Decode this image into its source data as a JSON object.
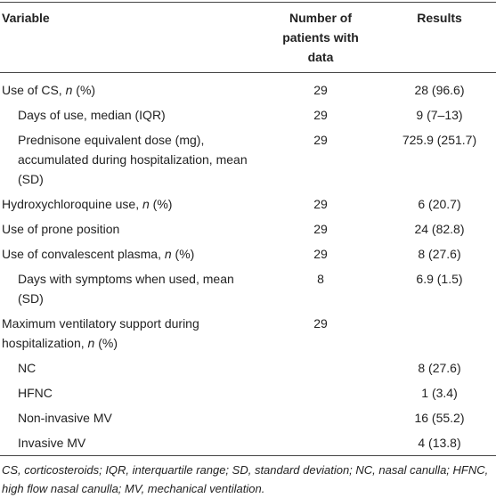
{
  "table": {
    "columns": [
      "Variable",
      "Number of patients with data",
      "Results"
    ],
    "rows": [
      {
        "variable": "Use of CS, n (%)",
        "patients": 29,
        "result": "28 (96.6)",
        "indent": false
      },
      {
        "variable": "Days of use, median (IQR)",
        "patients": 29,
        "result": "9 (7–13)",
        "indent": true
      },
      {
        "variable": "Prednisone equivalent dose (mg), accumulated during hospitalization, mean (SD)",
        "patients": 29,
        "result": "725.9 (251.7)",
        "indent": true
      },
      {
        "variable": "Hydroxychloroquine use, n (%)",
        "patients": 29,
        "result": "6 (20.7)",
        "indent": false
      },
      {
        "variable": "Use of prone position",
        "patients": 29,
        "result": "24 (82.8)",
        "indent": false
      },
      {
        "variable": "Use of convalescent plasma, n (%)",
        "patients": 29,
        "result": "8 (27.6)",
        "indent": false
      },
      {
        "variable": "Days with symptoms when used, mean (SD)",
        "patients": 8,
        "result": "6.9 (1.5)",
        "indent": true
      },
      {
        "variable": "Maximum ventilatory support during hospitalization, n (%)",
        "patients": 29,
        "indent": false
      },
      {
        "variable": "NC",
        "result": "8 (27.6)",
        "indent": true
      },
      {
        "variable": "HFNC",
        "result": "1 (3.4)",
        "indent": true
      },
      {
        "variable": "Non-invasive MV",
        "result": "16 (55.2)",
        "indent": true
      },
      {
        "variable": "Invasive MV",
        "result": "4 (13.8)",
        "indent": true
      }
    ]
  },
  "footnote": "CS, corticosteroids; IQR, interquartile range; SD, standard deviation; NC, nasal canulla; HFNC, high flow nasal canulla; MV, mechanical ventilation."
}
